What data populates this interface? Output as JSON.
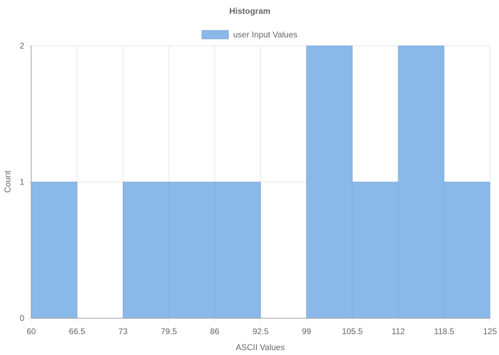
{
  "colors": {
    "bar_fill": "#8ab8e8",
    "bar_stroke": "#7aa6d6",
    "grid": "#e6e6e6",
    "axis": "#999999",
    "text": "#666666"
  },
  "chart_data": {
    "type": "bar",
    "title": "Histogram",
    "xlabel": "ASCII Values",
    "ylabel": "Count",
    "legend": {
      "position": "top",
      "entries": [
        "user Input Values"
      ]
    },
    "grid": true,
    "xlim": [
      60,
      125
    ],
    "ylim": [
      0,
      2
    ],
    "x_ticks": [
      "60",
      "66.5",
      "73",
      "79.5",
      "86",
      "92.5",
      "99",
      "105.5",
      "112",
      "118.5",
      "125"
    ],
    "y_ticks": [
      "0",
      "1",
      "2"
    ],
    "bin_edges": [
      60,
      66.5,
      73,
      79.5,
      86,
      92.5,
      99,
      105.5,
      112,
      118.5,
      125
    ],
    "series": [
      {
        "name": "user Input Values",
        "values": [
          1,
          0,
          1,
          1,
          1,
          0,
          2,
          1,
          2,
          1
        ]
      }
    ]
  }
}
